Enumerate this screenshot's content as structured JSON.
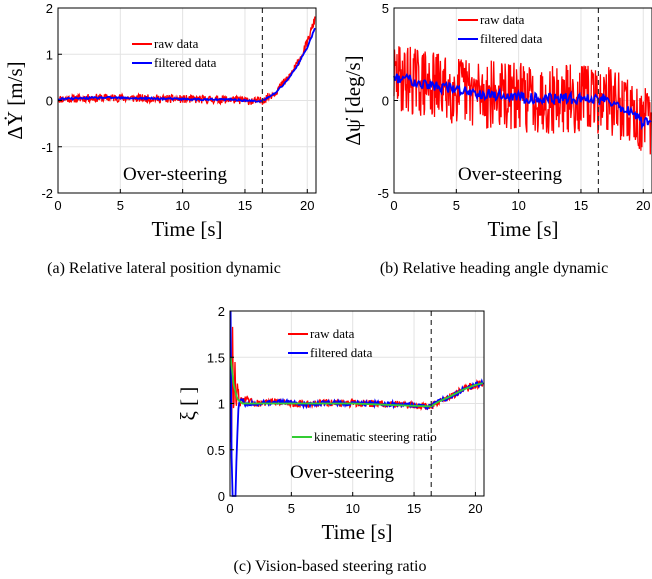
{
  "figure": {
    "captions": [
      "(a) Relative lateral position dynamic",
      "(b) Relative heading angle dynamic",
      "(c) Vision-based steering ratio"
    ]
  },
  "chart_data": [
    {
      "type": "line",
      "panel": "a",
      "xlabel": "Time [s]",
      "ylabel": "ΔẎ [m/s]",
      "xlim": [
        0,
        20.7
      ],
      "ylim": [
        -2,
        2
      ],
      "xticks": [
        0,
        5,
        10,
        15,
        20
      ],
      "yticks": [
        -2,
        -1,
        0,
        1,
        2
      ],
      "grid": true,
      "legend_position": "top-right",
      "vline_x": 16.4,
      "annotation": "Over-steering",
      "series": [
        {
          "name": "raw data",
          "color": "#ff0000",
          "noise": 0.09,
          "x": [
            0,
            2,
            4,
            6,
            8,
            10,
            12,
            14,
            15,
            16,
            16.4,
            17,
            17.5,
            18,
            18.5,
            19,
            19.5,
            20,
            20.3,
            20.6
          ],
          "y": [
            0.03,
            0.05,
            0.06,
            0.05,
            0.04,
            0.03,
            0.02,
            0.02,
            0.0,
            -0.02,
            0.0,
            0.1,
            0.2,
            0.35,
            0.5,
            0.7,
            0.95,
            1.25,
            1.5,
            1.75
          ]
        },
        {
          "name": "filtered data",
          "color": "#0000ff",
          "x": [
            0,
            2,
            4,
            6,
            8,
            10,
            12,
            14,
            15,
            16,
            16.4,
            17,
            17.5,
            18,
            18.5,
            19,
            19.5,
            20,
            20.3,
            20.6
          ],
          "y": [
            0.03,
            0.05,
            0.06,
            0.05,
            0.04,
            0.03,
            0.02,
            0.02,
            0.0,
            -0.02,
            0.0,
            0.08,
            0.18,
            0.32,
            0.48,
            0.67,
            0.9,
            1.15,
            1.35,
            1.55
          ]
        }
      ]
    },
    {
      "type": "line",
      "panel": "b",
      "xlabel": "Time [s]",
      "ylabel": "Δψ̇ [deg/s]",
      "xlim": [
        0,
        20.7
      ],
      "ylim": [
        -5,
        5
      ],
      "xticks": [
        0,
        5,
        10,
        15,
        20
      ],
      "yticks": [
        -5,
        0,
        5
      ],
      "grid": true,
      "legend_position": "top-right",
      "vline_x": 16.4,
      "annotation": "Over-steering",
      "series": [
        {
          "name": "raw data",
          "color": "#ff0000",
          "noise": 1.9,
          "x": [
            0,
            1,
            2,
            3,
            4,
            5,
            6,
            8,
            10,
            12,
            14,
            16,
            16.4,
            17,
            18,
            19,
            20,
            20.6
          ],
          "y": [
            1.2,
            1.2,
            1.0,
            0.8,
            0.7,
            0.6,
            0.5,
            0.3,
            0.2,
            0.1,
            0.1,
            0.1,
            0.0,
            0.2,
            -0.3,
            -0.6,
            -1.2,
            -1.3
          ]
        },
        {
          "name": "filtered data",
          "color": "#0000ff",
          "x": [
            0,
            1,
            2,
            3,
            4,
            5,
            6,
            8,
            10,
            12,
            14,
            16,
            16.4,
            17,
            18,
            19,
            20,
            20.6
          ],
          "y": [
            1.2,
            1.2,
            1.0,
            0.8,
            0.7,
            0.6,
            0.5,
            0.3,
            0.2,
            0.1,
            0.1,
            0.1,
            0.0,
            0.2,
            -0.3,
            -0.6,
            -1.2,
            -1.3
          ]
        }
      ]
    },
    {
      "type": "line",
      "panel": "c",
      "xlabel": "Time [s]",
      "ylabel": "ξ [ ]",
      "xlim": [
        0,
        20.7
      ],
      "ylim": [
        0,
        2
      ],
      "xticks": [
        0,
        5,
        10,
        15,
        20
      ],
      "yticks": [
        0,
        0.5,
        1,
        1.5,
        2
      ],
      "grid": true,
      "legend_position": "top-right",
      "vline_x": 16.4,
      "annotation": "Over-steering",
      "series": [
        {
          "name": "raw data",
          "color": "#ff0000",
          "noise": 0.04,
          "x": [
            0.05,
            0.1,
            0.2,
            0.3,
            0.4,
            0.5,
            0.6,
            0.8,
            1.0,
            2,
            4,
            6,
            8,
            10,
            12,
            14,
            16,
            16.4,
            17,
            18,
            19,
            20,
            20.6
          ],
          "y": [
            2.0,
            0.2,
            1.9,
            0.8,
            1.5,
            0.9,
            1.2,
            1.0,
            1.05,
            1.0,
            1.02,
            0.99,
            1.01,
            1.0,
            1.0,
            0.99,
            0.97,
            0.97,
            1.02,
            1.08,
            1.15,
            1.2,
            1.22
          ]
        },
        {
          "name": "filtered data",
          "color": "#0000ff",
          "x": [
            0.05,
            0.15,
            0.25,
            0.35,
            0.45,
            0.55,
            0.7,
            0.9,
            1.2,
            2,
            4,
            6,
            8,
            10,
            12,
            14,
            16,
            16.4,
            17,
            18,
            19,
            20,
            20.6
          ],
          "y": [
            2.0,
            0.0,
            0.0,
            0.0,
            0.0,
            0.5,
            1.0,
            1.05,
            1.0,
            1.0,
            1.02,
            0.99,
            1.01,
            1.0,
            1.0,
            0.99,
            0.97,
            0.97,
            1.02,
            1.08,
            1.15,
            1.2,
            1.22
          ]
        },
        {
          "name": "kinematic steering ratio",
          "color": "#33cc33",
          "x": [
            0.05,
            0.3,
            0.6,
            1,
            2,
            4,
            6,
            8,
            10,
            12,
            14,
            16,
            16.4,
            17,
            18,
            19,
            20,
            20.6
          ],
          "y": [
            1.5,
            1.2,
            1.05,
            1.0,
            1.0,
            1.0,
            1.0,
            1.0,
            1.0,
            0.99,
            0.98,
            0.97,
            0.97,
            1.02,
            1.08,
            1.15,
            1.2,
            1.22
          ]
        }
      ]
    }
  ]
}
